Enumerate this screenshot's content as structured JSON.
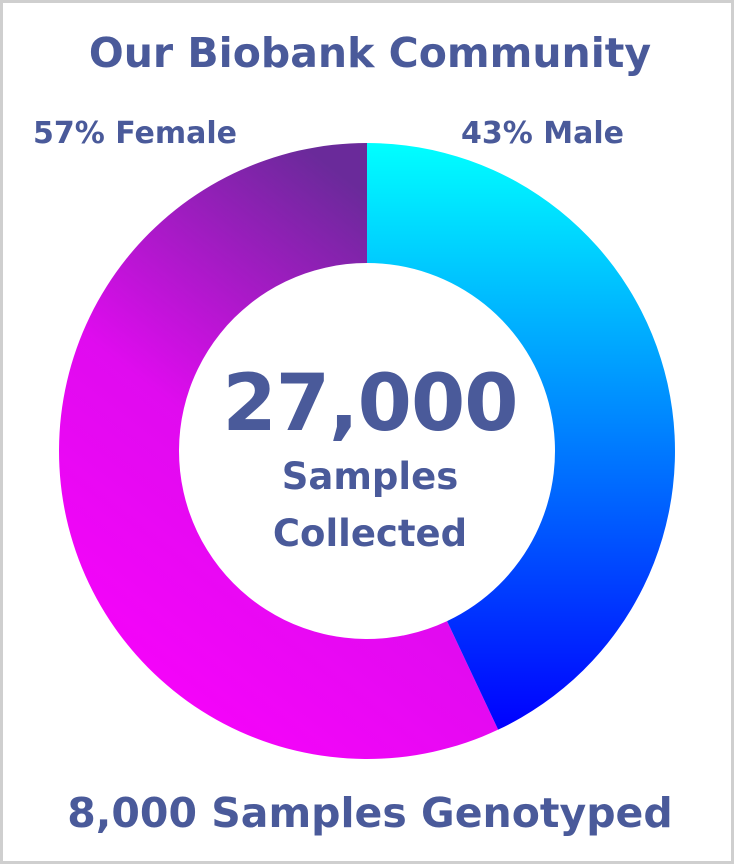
{
  "chart_data": {
    "type": "pie",
    "title": "Our Biobank Community",
    "categories": [
      "Female",
      "Male"
    ],
    "values": [
      57,
      43
    ],
    "labels": [
      "57% Female",
      "43% Male"
    ],
    "colors": {
      "Female": [
        "#ff00ff",
        "#6a2a9a"
      ],
      "Male": [
        "#00ffff",
        "#0000ff"
      ]
    },
    "donut": true,
    "center": {
      "value": "27,000",
      "line1": "Samples",
      "line2": "Collected"
    },
    "footer": "8,000 Samples Genotyped"
  },
  "colors": {
    "text": "#4a5a9a",
    "border": "#cfcfcf",
    "background": "#ffffff"
  }
}
